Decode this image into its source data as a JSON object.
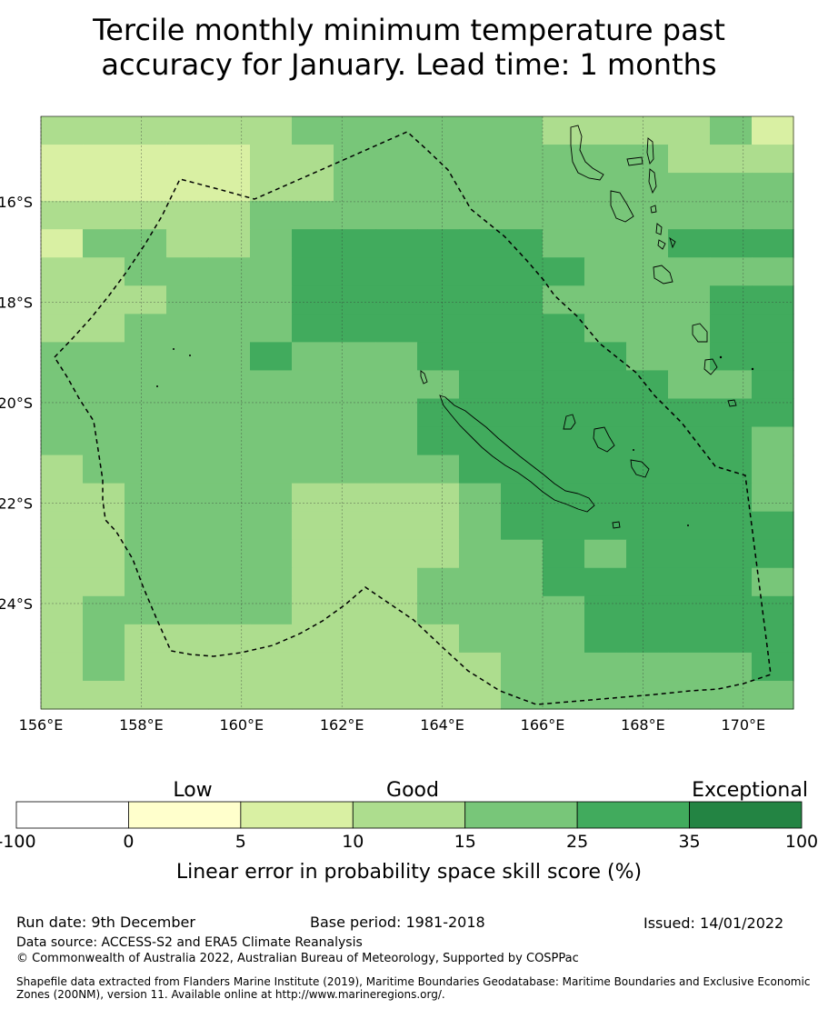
{
  "title": {
    "line1": "Tercile monthly minimum temperature past",
    "line2": "accuracy for January. Lead time: 1 months"
  },
  "map": {
    "lon_ticks": [
      "156°E",
      "158°E",
      "160°E",
      "162°E",
      "164°E",
      "166°E",
      "168°E",
      "170°E"
    ],
    "lat_ticks": [
      "16°S",
      "18°S",
      "20°S",
      "22°S",
      "24°S"
    ],
    "lon_range": [
      156,
      171
    ],
    "lat_range": [
      -14.3,
      -26.1
    ],
    "boundary_style": "dashed black line (maritime boundary)"
  },
  "colorbar": {
    "category_labels": [
      "Low",
      "Good",
      "Exceptional"
    ],
    "ticks": [
      "-100",
      "0",
      "5",
      "10",
      "15",
      "25",
      "35",
      "100"
    ],
    "colors": [
      "#ffffff",
      "#ffffcc",
      "#d9f0a3",
      "#addd8e",
      "#78c679",
      "#41ab5d",
      "#238443"
    ],
    "label": "Linear error in probability space skill score (%)"
  },
  "footer": {
    "run_date": "Run date: 9th December",
    "base_period": "Base period: 1981-2018",
    "issued": "Issued: 14/01/2022",
    "data_source": "Data source: ACCESS-S2 and ERA5 Climate Reanalysis",
    "copyright": "© Commonwealth of Australia 2022, Australian Bureau of Meteorology, Supported by COSPPac",
    "shapefile_note": "Shapefile data extracted from Flanders Marine Institute (2019), Maritime Boundaries Geodatabase: Maritime Boundaries and Exclusive Economic Zones (200NM), version 11. Available online at http://www.marineregions.org/."
  }
}
